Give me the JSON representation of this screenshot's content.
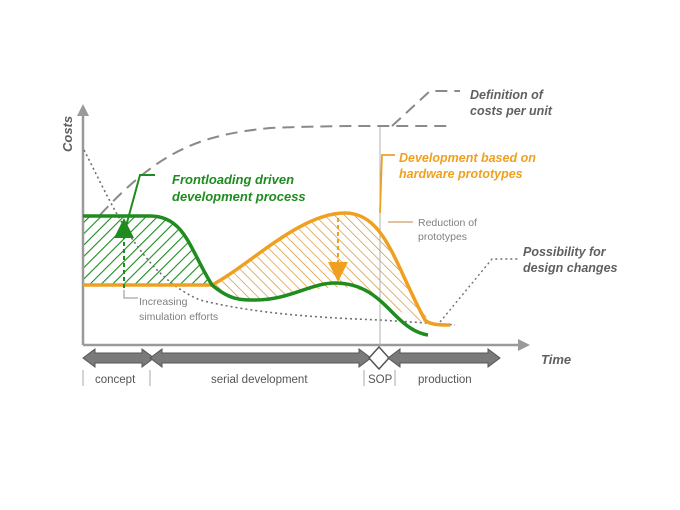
{
  "axes": {
    "y_label": "Costs",
    "x_label": "Time"
  },
  "annotations": {
    "unit_costs": [
      "Definition of",
      "costs per unit"
    ],
    "frontloading": [
      "Frontloading driven",
      "development process"
    ],
    "hardware": [
      "Development based on",
      "hardware prototypes"
    ],
    "reduction": [
      "Reduction of",
      "prototypes"
    ],
    "possibility": [
      "Possibility for",
      "design changes"
    ],
    "simulation": [
      "Increasing",
      "simulation efforts"
    ]
  },
  "phases": {
    "concept": "concept",
    "serial": "serial development",
    "sop": "SOP",
    "production": "production"
  },
  "colors": {
    "green": "#1e8c1e",
    "orange": "#f0a020",
    "grey_dash": "#8a8a8a",
    "dotted": "#707070",
    "axis": "#9a9a9a",
    "text_dark": "#606060"
  }
}
